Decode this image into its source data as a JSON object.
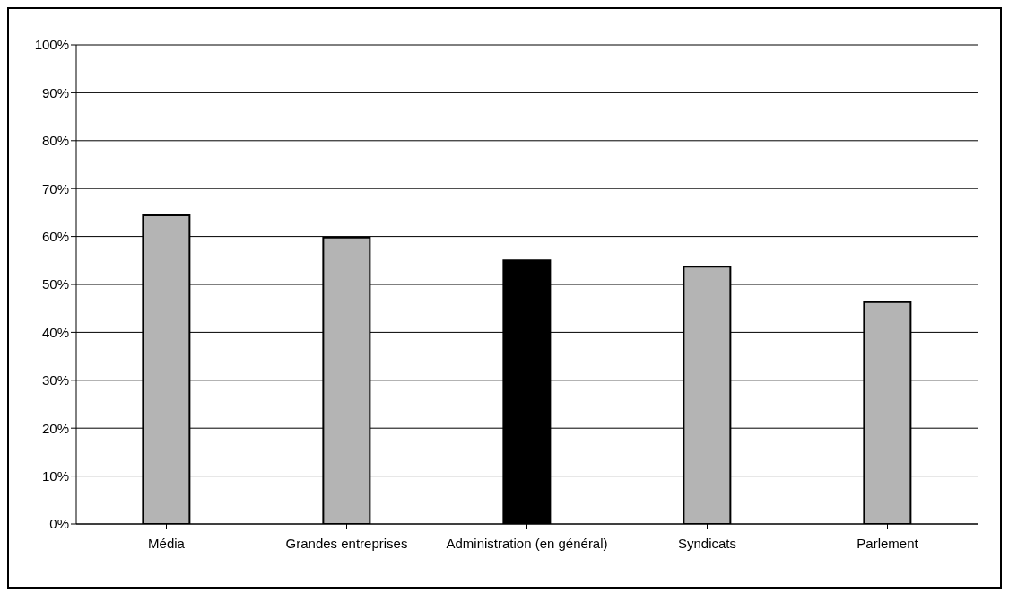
{
  "chart_data": {
    "type": "bar",
    "categories": [
      "Média",
      "Grandes entreprises",
      "Administration (en général)",
      "Syndicats",
      "Parlement"
    ],
    "values": [
      64.4,
      59.8,
      55.0,
      53.7,
      46.3
    ],
    "colors": [
      "#b4b4b4",
      "#b4b4b4",
      "#000000",
      "#b4b4b4",
      "#b4b4b4"
    ],
    "ylim": [
      0,
      100
    ],
    "yticks": [
      {
        "value": 0,
        "label": "0%"
      },
      {
        "value": 10,
        "label": "10%"
      },
      {
        "value": 20,
        "label": "20%"
      },
      {
        "value": 30,
        "label": "30%"
      },
      {
        "value": 40,
        "label": "40%"
      },
      {
        "value": 50,
        "label": "50%"
      },
      {
        "value": 60,
        "label": "60%"
      },
      {
        "value": 70,
        "label": "70%"
      },
      {
        "value": 80,
        "label": "80%"
      },
      {
        "value": 90,
        "label": "90%"
      },
      {
        "value": 100,
        "label": "100%"
      }
    ],
    "grid": "y",
    "legend": false
  }
}
